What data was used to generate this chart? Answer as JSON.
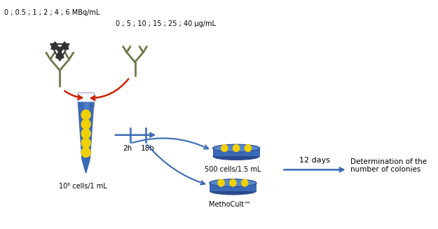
{
  "background_color": "#ffffff",
  "text_top_left": "0 ; 0.5 ; 1 ; 2 ; 4 ; 6 MBq/mL",
  "text_antibody2": "0 ; 5 ; 10 ; 15 ; 25 ; 40 μg/mL",
  "text_tube_label": "10⁶ cells/1 mL",
  "text_time1": "2h",
  "text_time2": "18h",
  "text_cells": "500 cells/1.5 mL",
  "text_methocult": "MethoCult™",
  "text_days": "12 days",
  "text_determination": "Determination of the\nnumber of colonies",
  "tube_blue": "#3a6ab5",
  "tube_light": "#c8d8f0",
  "tube_white": "#f5f5ff",
  "dot_color": "#f0d000",
  "arrow_red": "#cc2200",
  "line_blue": "#3a6ab5",
  "dish_dark": "#2a4a90",
  "dish_mid": "#3a6ab5",
  "dish_light": "#5588cc",
  "ab_color": "#6a7a4a",
  "rad_color": "#333333"
}
